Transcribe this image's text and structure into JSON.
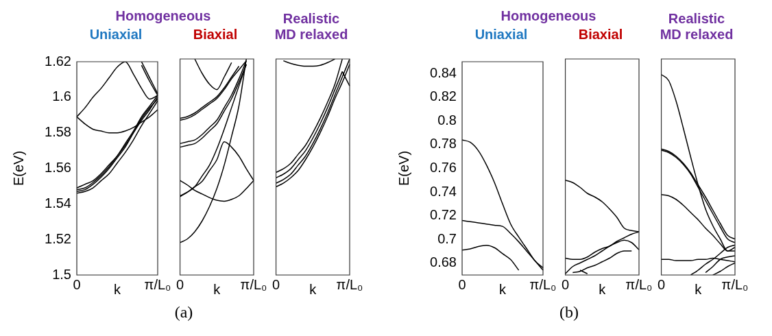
{
  "chart_data": [
    {
      "type": "line",
      "title": "Uniaxial",
      "ylabel": "E(eV)",
      "xlabel": "k",
      "annotations": [
        "Homogeneous",
        "(a)"
      ],
      "categories": [
        "0",
        null,
        null,
        null,
        null,
        null,
        null,
        null,
        null,
        null,
        "π/L₀"
      ],
      "ylim": [
        1.5,
        1.62
      ],
      "yticks": [
        1.5,
        1.52,
        1.54,
        1.56,
        1.58,
        1.6,
        1.62
      ],
      "grid": false,
      "legend": false,
      "marker": "none",
      "line_style": "solid",
      "series": [
        {
          "color": "#000000",
          "values": [
            1.589,
            1.594,
            1.6,
            1.605,
            1.611,
            1.617,
            1.62,
            1.613,
            1.605,
            1.599,
            1.601
          ]
        },
        {
          "color": "#000000",
          "values": [
            1.589,
            1.585,
            1.582,
            1.581,
            1.58,
            1.58,
            1.581,
            1.583,
            1.586,
            1.589,
            1.593
          ]
        },
        {
          "color": "#000000",
          "values": [
            1.549,
            1.551,
            1.553,
            1.557,
            1.562,
            1.567,
            1.573,
            1.58,
            1.587,
            1.593,
            1.6
          ]
        },
        {
          "color": "#000000",
          "values": [
            1.548,
            1.549,
            1.552,
            1.556,
            1.561,
            1.567,
            1.574,
            1.581,
            1.589,
            1.595,
            1.601
          ]
        },
        {
          "color": "#000000",
          "values": [
            1.547,
            1.548,
            1.551,
            1.555,
            1.56,
            1.566,
            1.572,
            1.58,
            1.588,
            1.594,
            1.599
          ]
        },
        {
          "color": "#000000",
          "values": [
            1.546,
            1.547,
            1.549,
            1.553,
            1.557,
            1.563,
            1.569,
            1.576,
            1.584,
            1.591,
            1.598
          ]
        },
        {
          "color": "#000000",
          "values": [
            null,
            null,
            null,
            null,
            null,
            null,
            null,
            null,
            1.618,
            1.609,
            1.601
          ]
        },
        {
          "color": "#000000",
          "values": [
            null,
            null,
            null,
            null,
            null,
            null,
            null,
            null,
            1.62,
            1.611,
            1.602
          ]
        }
      ]
    },
    {
      "type": "line",
      "title": "Biaxial",
      "xlabel": "k",
      "categories": [
        "0",
        null,
        null,
        null,
        null,
        null,
        null,
        null,
        null,
        null,
        "π/L₀"
      ],
      "ylim": [
        1.5,
        1.62
      ],
      "tick_labels": "x",
      "grid": false,
      "legend": false,
      "marker": "none",
      "line_style": "solid",
      "series": [
        {
          "color": "#000000",
          "values": [
            1.518,
            1.52,
            1.524,
            1.53,
            1.538,
            1.548,
            1.561,
            1.577,
            1.594,
            1.62,
            null
          ]
        },
        {
          "color": "#000000",
          "values": [
            1.5525,
            1.55,
            1.547,
            1.545,
            1.543,
            1.5415,
            1.541,
            1.542,
            1.544,
            1.548,
            1.5525
          ]
        },
        {
          "color": "#000000",
          "values": [
            1.544,
            1.546,
            1.549,
            1.555,
            1.561,
            1.57,
            1.581,
            1.593,
            1.605,
            1.617,
            null
          ]
        },
        {
          "color": "#000000",
          "values": [
            1.5435,
            1.546,
            1.549,
            1.552,
            1.558,
            1.564,
            1.574,
            1.571,
            1.566,
            1.559,
            1.5525
          ]
        },
        {
          "color": "#000000",
          "values": [
            1.573,
            1.574,
            1.575,
            1.578,
            1.582,
            1.586,
            1.593,
            1.6,
            1.609,
            1.619,
            null
          ]
        },
        {
          "color": "#000000",
          "values": [
            1.571,
            1.572,
            1.573,
            1.576,
            1.58,
            1.584,
            1.591,
            1.598,
            1.607,
            1.617,
            null
          ]
        },
        {
          "color": "#000000",
          "values": [
            1.586,
            1.587,
            1.589,
            1.592,
            1.595,
            1.598,
            1.603,
            1.609,
            1.614,
            1.619,
            null
          ]
        },
        {
          "color": "#000000",
          "values": [
            1.587,
            1.588,
            1.59,
            1.593,
            1.596,
            1.599,
            1.604,
            1.61,
            1.616,
            null,
            null
          ]
        },
        {
          "color": "#000000",
          "values": [
            null,
            null,
            1.62,
            1.612,
            1.606,
            1.603,
            1.61,
            1.618,
            null,
            null,
            null
          ]
        }
      ]
    },
    {
      "type": "line",
      "title": "Realistic MD relaxed",
      "xlabel": "k",
      "categories": [
        "0",
        null,
        null,
        null,
        null,
        null,
        null,
        null,
        null,
        null,
        "π/L₀"
      ],
      "ylim": [
        1.5,
        1.62
      ],
      "tick_labels": "x",
      "grid": false,
      "legend": false,
      "marker": "none",
      "line_style": "solid",
      "series": [
        {
          "color": "#000000",
          "values": [
            1.557,
            1.559,
            1.562,
            1.567,
            1.572,
            1.579,
            1.587,
            1.596,
            1.606,
            1.62,
            null
          ]
        },
        {
          "color": "#000000",
          "values": [
            1.554,
            1.556,
            1.559,
            1.564,
            1.569,
            1.576,
            1.584,
            1.593,
            1.603,
            1.613,
            null
          ]
        },
        {
          "color": "#000000",
          "values": [
            1.551,
            1.553,
            1.556,
            1.561,
            1.566,
            1.573,
            1.581,
            1.59,
            1.6,
            1.61,
            1.62
          ]
        },
        {
          "color": "#000000",
          "values": [
            1.549,
            1.551,
            1.554,
            1.558,
            1.564,
            1.571,
            1.579,
            1.588,
            1.598,
            1.607,
            1.617
          ]
        },
        {
          "color": "#000000",
          "values": [
            null,
            1.619,
            1.6175,
            1.6165,
            1.616,
            1.616,
            1.6165,
            1.618,
            1.62,
            null,
            null
          ]
        },
        {
          "color": "#000000",
          "values": [
            null,
            null,
            null,
            null,
            null,
            null,
            null,
            null,
            null,
            1.613,
            1.605
          ]
        }
      ]
    },
    {
      "type": "line",
      "title": "Uniaxial",
      "ylabel": "E(eV)",
      "xlabel": "k",
      "annotations": [
        "Homogeneous",
        "(b)"
      ],
      "categories": [
        "0",
        null,
        null,
        null,
        null,
        null,
        null,
        null,
        null,
        null,
        "π/L₀"
      ],
      "ylim": [
        0.67,
        0.85
      ],
      "yticks": [
        0.68,
        0.7,
        0.72,
        0.74,
        0.76,
        0.78,
        0.8,
        0.82,
        0.84
      ],
      "grid": false,
      "legend": false,
      "marker": "none",
      "line_style": "solid",
      "series": [
        {
          "color": "#000000",
          "values": [
            0.784,
            0.782,
            0.775,
            0.763,
            0.748,
            0.73,
            0.713,
            0.702,
            0.692,
            0.682,
            0.676
          ]
        },
        {
          "color": "#000000",
          "values": [
            0.716,
            0.715,
            0.714,
            0.713,
            0.712,
            0.711,
            0.705,
            0.698,
            0.69,
            0.682,
            0.674
          ]
        },
        {
          "color": "#000000",
          "values": [
            0.691,
            0.692,
            0.694,
            0.695,
            0.693,
            0.688,
            0.683,
            0.674,
            null,
            null,
            null
          ]
        }
      ]
    },
    {
      "type": "line",
      "title": "Biaxial",
      "xlabel": "k",
      "categories": [
        "0",
        null,
        null,
        null,
        null,
        null,
        null,
        null,
        null,
        null,
        "π/L₀"
      ],
      "ylim": [
        0.67,
        0.85
      ],
      "tick_labels": "x",
      "grid": false,
      "legend": false,
      "marker": "none",
      "line_style": "solid",
      "series": [
        {
          "color": "#000000",
          "values": [
            0.749,
            0.747,
            0.743,
            0.738,
            0.735,
            0.731,
            0.725,
            0.718,
            0.709,
            0.707,
            0.706
          ]
        },
        {
          "color": "#000000",
          "values": [
            0.684,
            0.683,
            0.683,
            0.685,
            0.689,
            0.692,
            0.694,
            0.698,
            0.701,
            0.704,
            0.706
          ]
        },
        {
          "color": "#000000",
          "values": [
            0.671,
            0.677,
            0.68,
            0.683,
            0.686,
            0.69,
            0.694,
            0.697,
            0.699,
            0.697,
            0.691
          ]
        },
        {
          "color": "#000000",
          "values": [
            null,
            0.672,
            0.673,
            0.676,
            0.678,
            0.681,
            0.684,
            0.688,
            0.69,
            0.69,
            null
          ]
        },
        {
          "color": "#000000",
          "values": [
            null,
            null,
            0.674,
            0.671,
            null,
            null,
            null,
            null,
            null,
            null,
            null
          ]
        }
      ]
    },
    {
      "type": "line",
      "title": "Realistic MD relaxed",
      "xlabel": "k",
      "categories": [
        "0",
        null,
        null,
        null,
        null,
        null,
        null,
        null,
        null,
        null,
        "π/L₀"
      ],
      "ylim": [
        0.67,
        0.85
      ],
      "tick_labels": "x",
      "grid": false,
      "legend": false,
      "marker": "none",
      "line_style": "solid",
      "series": [
        {
          "color": "#000000",
          "values": [
            0.837,
            0.832,
            0.815,
            0.792,
            0.768,
            0.745,
            0.725,
            0.711,
            0.7,
            0.69,
            0.693
          ]
        },
        {
          "color": "#000000",
          "values": [
            0.775,
            0.773,
            0.769,
            0.763,
            0.755,
            0.745,
            0.735,
            0.724,
            0.713,
            0.703,
            0.7
          ]
        },
        {
          "color": "#000000",
          "values": [
            0.774,
            0.772,
            0.768,
            0.762,
            0.754,
            0.743,
            0.732,
            0.721,
            0.71,
            0.7,
            0.697
          ]
        },
        {
          "color": "#000000",
          "values": [
            0.737,
            0.736,
            0.733,
            0.728,
            0.722,
            0.716,
            0.709,
            0.703,
            0.696,
            0.69,
            0.69
          ]
        },
        {
          "color": "#000000",
          "values": [
            0.683,
            0.683,
            0.682,
            0.682,
            0.682,
            0.683,
            0.683,
            0.684,
            0.683,
            0.682,
            0.681
          ]
        },
        {
          "color": "#000000",
          "values": [
            null,
            null,
            null,
            null,
            0.67,
            0.674,
            0.679,
            0.683,
            0.688,
            0.693,
            0.695
          ]
        },
        {
          "color": "#000000",
          "values": [
            null,
            null,
            null,
            null,
            null,
            null,
            0.672,
            0.677,
            0.683,
            0.685,
            0.686
          ]
        },
        {
          "color": "#000000",
          "values": [
            null,
            null,
            null,
            null,
            null,
            null,
            null,
            0.67,
            0.673,
            0.677,
            0.68
          ]
        }
      ]
    }
  ]
}
